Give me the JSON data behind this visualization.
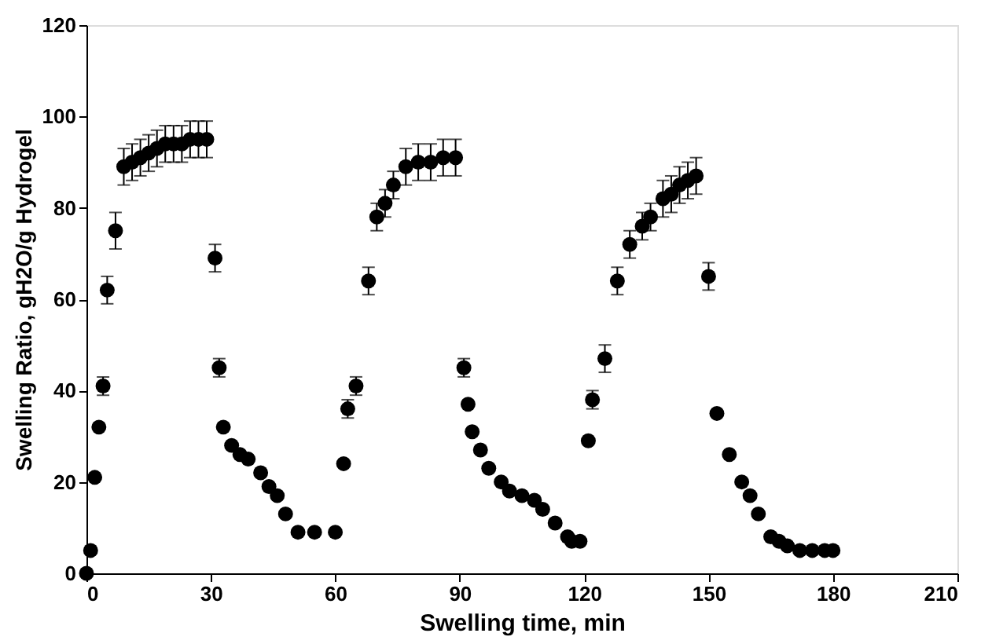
{
  "chart_data": {
    "type": "scatter",
    "xlabel": "Swelling time, min",
    "ylabel": "Swelling Ratio, gH2O/g Hydrogel",
    "xlim": [
      0,
      210
    ],
    "xticks": [
      0,
      30,
      60,
      90,
      120,
      150,
      180,
      210
    ],
    "ylim": [
      0,
      120
    ],
    "yticks": [
      0,
      20,
      40,
      60,
      80,
      100,
      120
    ],
    "grid": false,
    "marker": "circle",
    "series": [
      {
        "color": "#000000",
        "x": [
          0,
          1,
          2,
          3,
          4,
          5,
          7,
          9,
          11,
          13,
          15,
          17,
          19,
          21,
          23,
          25,
          27,
          29,
          31,
          32,
          33,
          35,
          37,
          39,
          42,
          44,
          46,
          48,
          51,
          55,
          60,
          62,
          63,
          65,
          68,
          70,
          72,
          74,
          77,
          80,
          83,
          86,
          89,
          91,
          92,
          93,
          95,
          97,
          100,
          102,
          105,
          108,
          110,
          113,
          116,
          117,
          119,
          121,
          122,
          125,
          128,
          131,
          134,
          136,
          139,
          141,
          143,
          145,
          147,
          150,
          152,
          155,
          158,
          160,
          162,
          165,
          167,
          169,
          172,
          175,
          178,
          180
        ],
        "values": [
          0,
          5,
          21,
          32,
          41,
          62,
          75,
          89,
          90,
          91,
          92,
          93,
          94,
          94,
          94,
          95,
          95,
          95,
          69,
          45,
          32,
          28,
          26,
          25,
          22,
          19,
          17,
          13,
          9,
          9,
          9,
          24,
          36,
          41,
          64,
          78,
          81,
          85,
          89,
          90,
          90,
          91,
          91,
          45,
          37,
          31,
          27,
          23,
          20,
          18,
          17,
          16,
          14,
          11,
          8,
          7,
          7,
          29,
          38,
          47,
          64,
          72,
          76,
          78,
          82,
          83,
          85,
          86,
          87,
          65,
          35,
          26,
          20,
          17,
          13,
          8,
          7,
          6,
          5,
          5,
          5,
          5
        ],
        "errors": [
          null,
          null,
          null,
          null,
          2,
          3,
          4,
          4,
          4,
          4,
          4,
          4,
          4,
          4,
          4,
          4,
          4,
          4,
          3,
          2,
          null,
          null,
          null,
          null,
          null,
          null,
          null,
          null,
          null,
          null,
          null,
          null,
          2,
          2,
          3,
          3,
          3,
          3,
          4,
          4,
          4,
          4,
          4,
          2,
          null,
          null,
          null,
          null,
          null,
          null,
          null,
          null,
          null,
          null,
          null,
          null,
          null,
          null,
          2,
          3,
          3,
          3,
          3,
          3,
          4,
          4,
          4,
          4,
          4,
          3,
          null,
          null,
          null,
          null,
          null,
          null,
          null,
          null,
          null,
          null,
          null,
          null
        ]
      }
    ]
  }
}
